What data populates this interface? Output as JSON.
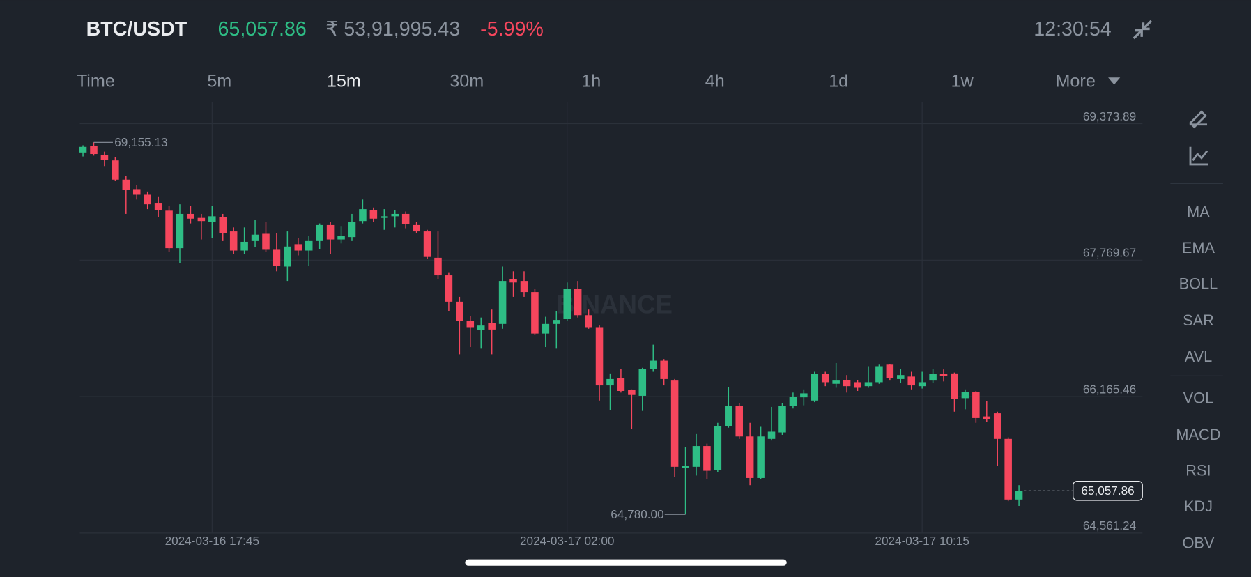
{
  "header": {
    "pair": "BTC/USDT",
    "price": "65,057.86",
    "local_price": "₹ 53,91,995.43",
    "change": "-5.99%",
    "time": "12:30:54"
  },
  "tabs": [
    "Time",
    "5m",
    "15m",
    "30m",
    "1h",
    "4h",
    "1d",
    "1w",
    "More"
  ],
  "indicators": [
    "MA",
    "EMA",
    "BOLL",
    "SAR",
    "AVL",
    "VOL",
    "MACD",
    "RSI",
    "KDJ",
    "OBV"
  ],
  "watermark": "BINANCE",
  "chart_data": {
    "type": "candlestick",
    "categories": [
      null,
      null,
      null,
      null,
      null,
      null,
      null,
      null,
      null,
      null,
      null,
      null,
      "2024-03-16 17:45",
      null,
      null,
      null,
      null,
      null,
      null,
      null,
      null,
      null,
      null,
      null,
      null,
      null,
      null,
      null,
      null,
      null,
      null,
      null,
      null,
      null,
      null,
      null,
      null,
      null,
      null,
      null,
      null,
      null,
      null,
      null,
      null,
      "2024-03-17 02:00",
      null,
      null,
      null,
      null,
      null,
      null,
      null,
      null,
      null,
      null,
      null,
      null,
      null,
      null,
      null,
      null,
      null,
      null,
      null,
      null,
      null,
      null,
      null,
      null,
      null,
      null,
      null,
      null,
      null,
      null,
      null,
      null,
      "2024-03-17 10:15",
      null,
      null,
      null,
      null,
      null,
      null,
      null,
      null,
      null
    ],
    "open": [
      69036,
      69111,
      69008,
      68943,
      68717,
      68605,
      68539,
      68436,
      68352,
      67911,
      68314,
      68267,
      68220,
      68277,
      68108,
      67883,
      67995,
      68080,
      67892,
      67695,
      67958,
      67883,
      67995,
      68183,
      68014,
      68042,
      68230,
      68361,
      68267,
      68286,
      68314,
      68183,
      68108,
      67798,
      67592,
      67282,
      67057,
      66945,
      67029,
      67020,
      67545,
      67526,
      67395,
      66907,
      67020,
      67076,
      67432,
      67123,
      66982,
      66297,
      66382,
      66241,
      66175,
      66494,
      66588,
      66354,
      65330,
      65340,
      65584,
      65302,
      65819,
      66054,
      65697,
      65208,
      65668,
      65744,
      66054,
      66157,
      66119,
      66429,
      66316,
      66363,
      66335,
      66288,
      66335,
      66541,
      66372,
      66401,
      66288,
      66354,
      66429,
      66438,
      66147,
      66222,
      65932,
      65969,
      65668,
      64955
    ],
    "high": [
      69121,
      69155.13,
      69046,
      68980,
      68764,
      68652,
      68577,
      68520,
      68408,
      68427,
      68408,
      68314,
      68408,
      68314,
      68155,
      68155,
      68248,
      68220,
      68089,
      68108,
      68033,
      68052,
      68202,
      68220,
      68164,
      68314,
      68483,
      68389,
      68370,
      68361,
      68342,
      68220,
      68127,
      68108,
      67620,
      67339,
      67114,
      67095,
      67189,
      67695,
      67639,
      67639,
      67432,
      67104,
      67170,
      67508,
      67526,
      67189,
      67001,
      66438,
      66494,
      66250,
      66504,
      66776,
      66607,
      66372,
      65574,
      65725,
      65612,
      65857,
      66279,
      66091,
      65857,
      65810,
      66044,
      66091,
      66213,
      66250,
      66457,
      66457,
      66560,
      66419,
      66363,
      66523,
      66541,
      66551,
      66494,
      66457,
      66457,
      66494,
      66485,
      66448,
      66250,
      66232,
      66110,
      65988,
      65687,
      65124
    ],
    "low": [
      68989,
      68999,
      68877,
      68699,
      68314,
      68483,
      68370,
      68277,
      67864,
      67733,
      68202,
      68014,
      68033,
      67995,
      67845,
      67845,
      67920,
      67864,
      67639,
      67526,
      67826,
      67704,
      67901,
      67845,
      67967,
      67995,
      68202,
      68220,
      68127,
      68155,
      68145,
      68089,
      67789,
      67545,
      67170,
      66663,
      66748,
      66729,
      66663,
      66963,
      67339,
      67339,
      66888,
      66748,
      66729,
      67057,
      67095,
      66963,
      66119,
      66007,
      66213,
      65781,
      65997,
      66457,
      66297,
      65218,
      64780.0,
      65237,
      65199,
      65274,
      65800,
      65668,
      65124,
      65199,
      65649,
      65716,
      66025,
      66063,
      66100,
      66288,
      66269,
      66213,
      66232,
      66269,
      66316,
      66354,
      66326,
      66250,
      66260,
      66326,
      66344,
      65988,
      66016,
      65857,
      65866,
      65349,
      64936,
      64880
    ],
    "close": [
      69102,
      69018,
      68952,
      68717,
      68596,
      68539,
      68427,
      68361,
      67911,
      68314,
      68258,
      68230,
      68286,
      68089,
      67883,
      67986,
      68070,
      67892,
      67704,
      67930,
      67883,
      67995,
      68183,
      68014,
      68052,
      68220,
      68370,
      68258,
      68286,
      68314,
      68192,
      68108,
      67808,
      67592,
      67282,
      67057,
      66982,
      67001,
      66954,
      67526,
      67508,
      67395,
      66907,
      67020,
      67067,
      67432,
      67123,
      66982,
      66297,
      66372,
      66232,
      66185,
      66494,
      66588,
      66372,
      65340,
      65349,
      65584,
      65293,
      65819,
      66054,
      65697,
      65208,
      65697,
      65753,
      66054,
      66166,
      66204,
      66429,
      66335,
      66354,
      66288,
      66269,
      66335,
      66523,
      66382,
      66419,
      66297,
      66335,
      66429,
      66410,
      66138,
      66222,
      65913,
      65904,
      65668,
      64955,
      65057.86
    ],
    "up_color": "#2ebd85",
    "down_color": "#f6465d",
    "ylim": [
      64561.24,
      69373.89
    ],
    "yticks": [
      {
        "value": 69373.89,
        "label": "69,373.89"
      },
      {
        "value": 67769.67,
        "label": "67,769.67"
      },
      {
        "value": 66165.46,
        "label": "66,165.46"
      },
      {
        "value": 64561.24,
        "label": "64,561.24"
      }
    ],
    "grid": true,
    "max_label": "69,155.13",
    "min_label": "64,780.00",
    "last_label": "65,057.86"
  }
}
